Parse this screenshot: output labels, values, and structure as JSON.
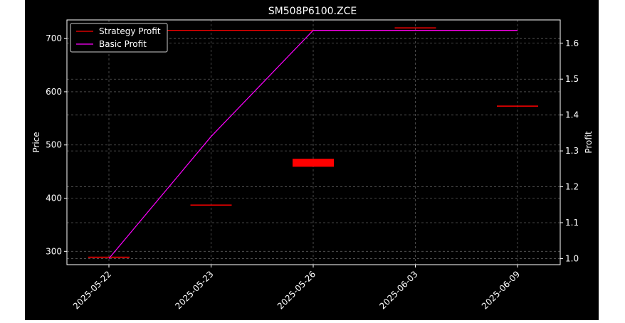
{
  "chart_data": {
    "type": "line",
    "title": "SM508P6100.ZCE",
    "xlabel": "",
    "ylabel": "Price",
    "y2label": "Profit",
    "categories": [
      "2025-05-22",
      "2025-05-23",
      "2025-05-26",
      "2025-06-03",
      "2025-06-09"
    ],
    "ylim": [
      275,
      735
    ],
    "yticks": [
      300,
      400,
      500,
      600,
      700
    ],
    "y2lim": [
      0.983,
      1.665
    ],
    "y2ticks": [
      1.0,
      1.1,
      1.2,
      1.3,
      1.4,
      1.5,
      1.6
    ],
    "grid": true,
    "legend_position": "top-left",
    "candles": [
      {
        "x": "2025-05-22",
        "open": 290,
        "close": 289
      },
      {
        "x": "2025-05-23",
        "open": 388,
        "close": 387
      },
      {
        "x": "2025-05-26",
        "open": 474,
        "close": 459
      },
      {
        "x": "2025-06-03",
        "open": 721,
        "close": 720
      },
      {
        "x": "2025-06-09",
        "open": 574,
        "close": 573
      }
    ],
    "series": [
      {
        "name": "Strategy Profit",
        "axis": "right",
        "color": "#ff0000",
        "values": [
          1.636,
          1.636,
          1.636,
          1.636,
          1.636
        ]
      },
      {
        "name": "Basic Profit",
        "axis": "right",
        "color": "#ff00ff",
        "values": [
          1.0,
          1.34,
          1.636,
          1.636,
          1.636
        ]
      }
    ],
    "colors": {
      "background": "#000000",
      "candle": "#ff0000",
      "grid": "#5a5a5a",
      "text": "#ffffff"
    }
  }
}
